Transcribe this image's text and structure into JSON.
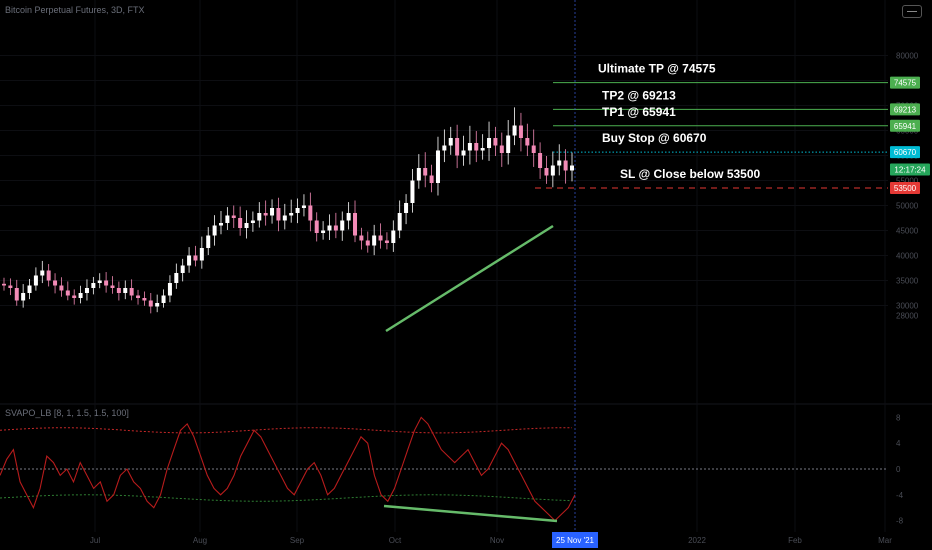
{
  "header": {
    "symbol_title": "Bitcoin Perpetual Futures, 3D, FTX",
    "indicator_title": "SVAPO_LB [8, 1, 1.5, 1.5, 100]"
  },
  "chart_data": {
    "type": "candlestick",
    "timeframe": "3D",
    "ylim": [
      26000,
      84000
    ],
    "y_ticks": [
      80000,
      75000,
      70000,
      65000,
      60000,
      55000,
      50000,
      45000,
      40000,
      35000,
      30000
    ],
    "y_ticks_partial": [
      28000
    ],
    "x_ticks": [
      "Jul",
      "Aug",
      "Sep",
      "Oct",
      "Nov",
      "2022",
      "Feb",
      "Mar"
    ],
    "crosshair_date": "25 Nov '21",
    "current_countdown": "12:17:24",
    "levels": [
      {
        "label": "Ultimate TP @ 74575",
        "value": 74575,
        "tag": "74575",
        "color": "#4caf50",
        "style": "solid"
      },
      {
        "label": "TP2 @ 69213",
        "value": 69213,
        "tag": "69213",
        "color": "#4caf50",
        "style": "solid"
      },
      {
        "label": "TP1 @ 65941",
        "value": 65941,
        "tag": "65941",
        "color": "#4caf50",
        "style": "solid"
      },
      {
        "label": "Buy Stop @ 60670",
        "value": 60670,
        "tag": "60670",
        "color": "#00bcd4",
        "style": "dotted"
      },
      {
        "label": "SL @ Close below 53500",
        "value": 53500,
        "tag": "53500",
        "color": "#e53935",
        "style": "dashed"
      }
    ],
    "current_price": 57200,
    "close_approx": [
      34000,
      33500,
      31000,
      32500,
      34000,
      36000,
      37000,
      35000,
      34000,
      33000,
      32000,
      31500,
      32500,
      33500,
      34500,
      35000,
      34000,
      33500,
      32500,
      33500,
      32000,
      31500,
      31000,
      29800,
      30500,
      32000,
      34500,
      36500,
      38000,
      40000,
      39000,
      41500,
      44000,
      46000,
      46500,
      48000,
      47500,
      45500,
      46500,
      47000,
      48500,
      48000,
      49500,
      47000,
      48000,
      48500,
      49500,
      50000,
      47000,
      44500,
      45000,
      46000,
      45000,
      47000,
      48500,
      44000,
      43000,
      42000,
      44000,
      43000,
      42500,
      45000,
      48500,
      50500,
      55000,
      57500,
      56000,
      54500,
      61000,
      62000,
      63500,
      60000,
      61000,
      62500,
      61000,
      61500,
      63500,
      62000,
      60500,
      64000,
      66000,
      63500,
      62000,
      60500,
      57500,
      56000,
      58000,
      59000,
      57000,
      58000
    ],
    "indicator": {
      "name": "SVAPO_LB",
      "ylim": [
        -9,
        9
      ],
      "y_ticks": [
        8,
        4,
        0,
        -4,
        -8
      ],
      "upper_band": 6,
      "lower_band": -4.5
    }
  },
  "colors": {
    "background": "#000000",
    "candle_up": "#ffffff",
    "candle_down": "#f28ab6",
    "trendline": "#66bb6a",
    "svapo_line": "#b71c1c",
    "upper_band": "#c62828",
    "lower_band": "#2e7d32"
  }
}
